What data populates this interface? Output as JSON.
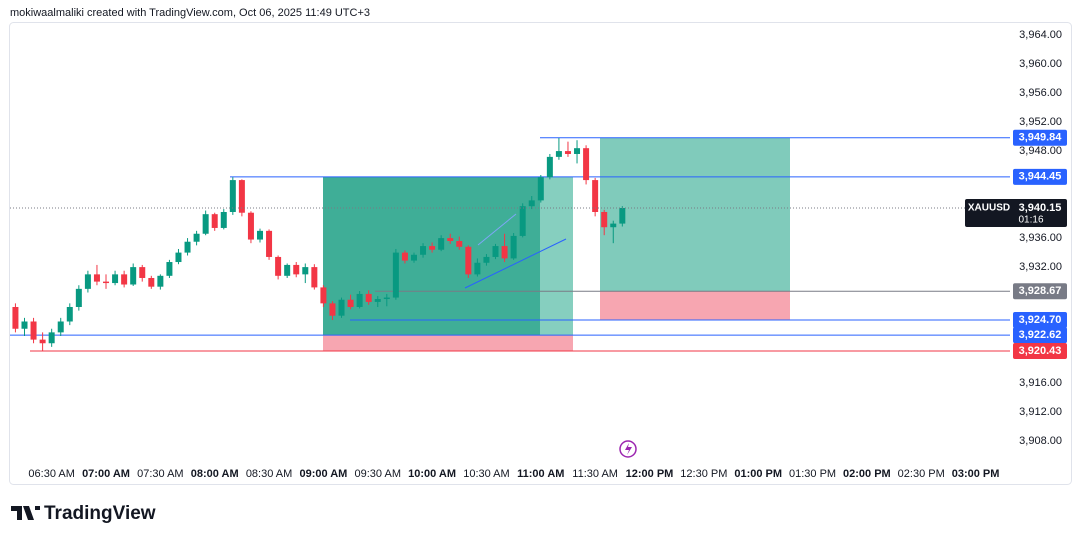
{
  "header": "mokiwaalmaliki created with TradingView.com, Oct 06, 2025 11:49 UTC+3",
  "footer_logo": "TradingView",
  "chart_data": {
    "type": "candlestick",
    "x": [
      "06:10 AM",
      "06:15 AM",
      "06:20 AM",
      "06:25 AM",
      "06:30 AM",
      "06:35 AM",
      "06:40 AM",
      "06:45 AM",
      "06:50 AM",
      "06:55 AM",
      "07:00 AM",
      "07:05 AM",
      "07:10 AM",
      "07:15 AM",
      "07:20 AM",
      "07:25 AM",
      "07:30 AM",
      "07:35 AM",
      "07:40 AM",
      "07:45 AM",
      "07:50 AM",
      "07:55 AM",
      "08:00 AM",
      "08:05 AM",
      "08:10 AM",
      "08:15 AM",
      "08:20 AM",
      "08:25 AM",
      "08:30 AM",
      "08:35 AM",
      "08:40 AM",
      "08:45 AM",
      "08:50 AM",
      "08:55 AM",
      "09:00 AM",
      "09:05 AM",
      "09:10 AM",
      "09:15 AM",
      "09:20 AM",
      "09:25 AM",
      "09:30 AM",
      "09:35 AM",
      "09:40 AM",
      "09:45 AM",
      "09:50 AM",
      "09:55 AM",
      "10:00 AM",
      "10:05 AM",
      "10:10 AM",
      "10:15 AM",
      "10:20 AM",
      "10:25 AM",
      "10:30 AM",
      "10:35 AM",
      "10:40 AM",
      "10:45 AM",
      "10:50 AM",
      "10:55 AM",
      "11:00 AM",
      "11:05 AM",
      "11:10 AM",
      "11:15 AM",
      "11:20 AM",
      "11:25 AM",
      "11:30 AM",
      "11:35 AM",
      "11:40 AM",
      "11:45 AM"
    ],
    "open": [
      3926.5,
      3923.5,
      3924.5,
      3922,
      3921.5,
      3923,
      3924.5,
      3926.5,
      3929,
      3931,
      3930,
      3929.8,
      3931,
      3929.6,
      3932,
      3930.5,
      3929.3,
      3930.8,
      3932.7,
      3934,
      3935.5,
      3936.6,
      3939.3,
      3937.4,
      3939.6,
      3944,
      3939.5,
      3935.8,
      3937,
      3933.4,
      3930.8,
      3932.3,
      3931,
      3932,
      3929.2,
      3927,
      3925.3,
      3927.5,
      3926.5,
      3928.3,
      3927.2,
      3927.6,
      3927.8,
      3934,
      3932.9,
      3933.7,
      3934.9,
      3934.4,
      3936,
      3935.6,
      3934.8,
      3931,
      3932.6,
      3933.4,
      3934.9,
      3933.2,
      3936.3,
      3940.4,
      3941.2,
      3944.4,
      3947.2,
      3948,
      3947.6,
      3948.4,
      3944,
      3939.6,
      3937.5,
      3938
    ],
    "high": [
      3927,
      3925,
      3925,
      3923,
      3923.5,
      3925,
      3927,
      3929.5,
      3931.5,
      3932.3,
      3931,
      3931.5,
      3931.5,
      3932.5,
      3932.3,
      3930.8,
      3931,
      3933,
      3934.5,
      3936,
      3937,
      3939.8,
      3939.5,
      3940,
      3944.4,
      3944.1,
      3939.7,
      3937.3,
      3937.2,
      3933.6,
      3932.5,
      3932.7,
      3932.5,
      3932.4,
      3929.5,
      3927.3,
      3927.8,
      3928.2,
      3928.7,
      3928.8,
      3928,
      3928.3,
      3934.5,
      3934.3,
      3934,
      3935.3,
      3935.4,
      3936.4,
      3936.6,
      3936.2,
      3935,
      3933.2,
      3933.8,
      3935.2,
      3936.6,
      3936.7,
      3940.8,
      3941.8,
      3944.7,
      3947.6,
      3949.8,
      3949.3,
      3949.5,
      3948.8,
      3944.3,
      3939.9,
      3938.4,
      3940.4
    ],
    "low": [
      3923,
      3922.5,
      3921.5,
      3920.4,
      3921,
      3922.5,
      3924,
      3926,
      3928.5,
      3929.5,
      3929,
      3929.5,
      3929.2,
      3929.4,
      3930,
      3929,
      3928.9,
      3930.5,
      3932.4,
      3933.6,
      3935,
      3936.4,
      3937,
      3937.2,
      3939.2,
      3939,
      3935.3,
      3935.4,
      3933,
      3930.3,
      3930.5,
      3930.6,
      3929.8,
      3928.9,
      3926.5,
      3924.7,
      3925,
      3926.2,
      3926.3,
      3926.8,
      3926.5,
      3926.6,
      3927.5,
      3932.5,
      3932.6,
      3933.3,
      3934,
      3934.2,
      3935.2,
      3934.4,
      3930.5,
      3930.7,
      3932.2,
      3933.1,
      3932.7,
      3933,
      3936.1,
      3940,
      3940.9,
      3944.1,
      3946.8,
      3947.2,
      3946.3,
      3943.4,
      3939,
      3936.4,
      3935.3,
      3937.6
    ],
    "close": [
      3923.5,
      3924.5,
      3922,
      3921.5,
      3923,
      3924.5,
      3926.5,
      3929,
      3931,
      3930,
      3929.8,
      3931,
      3929.6,
      3932,
      3930.5,
      3929.3,
      3930.8,
      3932.7,
      3934,
      3935.5,
      3936.6,
      3939.3,
      3937.4,
      3939.6,
      3944,
      3939.5,
      3935.8,
      3937,
      3933.4,
      3930.8,
      3932.3,
      3931,
      3932,
      3929.2,
      3927,
      3925.3,
      3927.5,
      3926.5,
      3928.3,
      3927.2,
      3927.6,
      3927.8,
      3934,
      3932.9,
      3933.7,
      3934.9,
      3934.4,
      3936,
      3935.6,
      3934.8,
      3931,
      3932.6,
      3933.4,
      3934.9,
      3933.2,
      3936.3,
      3940.4,
      3941.2,
      3944.4,
      3947.2,
      3948,
      3947.6,
      3948.4,
      3944,
      3939.6,
      3937.5,
      3938,
      3940.15
    ],
    "up_color": "#089981",
    "down_color": "#f23645",
    "xlim": [
      "06:07 AM",
      "03:19 PM"
    ],
    "xticks": [
      "06:30 AM",
      "07:00 AM",
      "07:30 AM",
      "08:00 AM",
      "08:30 AM",
      "09:00 AM",
      "09:30 AM",
      "10:00 AM",
      "10:30 AM",
      "11:00 AM",
      "11:30 AM",
      "12:00 PM",
      "12:30 PM",
      "01:00 PM",
      "01:30 PM",
      "02:00 PM",
      "02:30 PM",
      "03:00 PM"
    ],
    "ylim": [
      3905.4,
      3965.8
    ],
    "yticks": [
      {
        "value": 3964,
        "label": "3,964.00"
      },
      {
        "value": 3960,
        "label": "3,960.00"
      },
      {
        "value": 3956,
        "label": "3,956.00"
      },
      {
        "value": 3952,
        "label": "3,952.00"
      },
      {
        "value": 3948,
        "label": "3,948.00"
      },
      {
        "value": 3936,
        "label": "3,936.00"
      },
      {
        "value": 3932,
        "label": "3,932.00"
      },
      {
        "value": 3916,
        "label": "3,916.00"
      },
      {
        "value": 3912,
        "label": "3,912.00"
      },
      {
        "value": 3908,
        "label": "3,908.00"
      }
    ],
    "price_levels": [
      {
        "value": 3949.84,
        "label": "3,949.84",
        "color": "#2962ff"
      },
      {
        "value": 3944.45,
        "label": "3,944.45",
        "color": "#2962ff"
      },
      {
        "value": 3928.67,
        "label": "3,928.67",
        "color": "#787b86"
      },
      {
        "value": 3924.7,
        "label": "3,924.70",
        "color": "#2962ff"
      },
      {
        "value": 3922.62,
        "label": "3,922.62",
        "color": "#2962ff"
      },
      {
        "value": 3920.43,
        "label": "3,920.43",
        "color": "#f23645"
      }
    ],
    "current_price": {
      "symbol": "XAUUSD",
      "value": 3940.15,
      "label": "3,940.15",
      "countdown": "01:16"
    }
  }
}
